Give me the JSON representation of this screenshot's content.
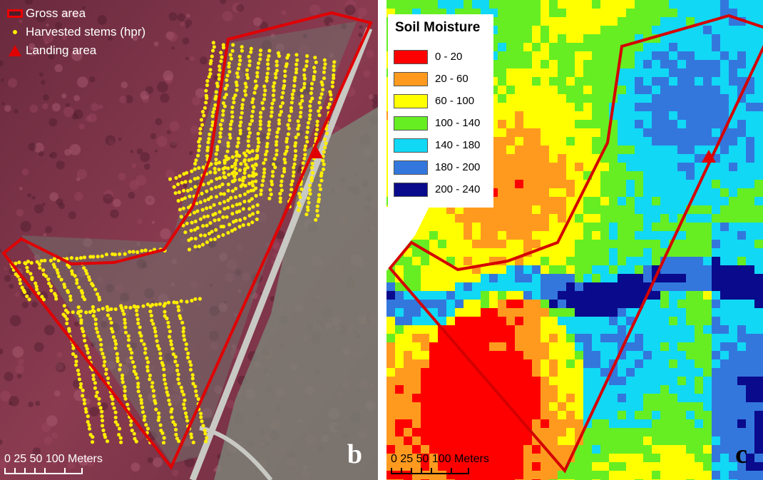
{
  "panel_b": {
    "legend": {
      "gross_area": "Gross area",
      "harvested_stems": "Harvested stems (hpr)",
      "landing_area": "Landing area"
    },
    "scale_text": "0  25 50     100 Meters",
    "panel_letter": "b",
    "colors": {
      "boundary": "#e00000",
      "stems": "#ffee00",
      "landing": "#e00000"
    }
  },
  "panel_c": {
    "legend": {
      "title": "Soil Moisture",
      "classes": [
        {
          "label": "0 - 20",
          "color": "#ff0000"
        },
        {
          "label": "20 - 60",
          "color": "#ff9a1f"
        },
        {
          "label": "60 - 100",
          "color": "#ffff00"
        },
        {
          "label": "100 - 140",
          "color": "#66ee22"
        },
        {
          "label": "140 - 180",
          "color": "#11d8f5"
        },
        {
          "label": "180 - 200",
          "color": "#3377dd"
        },
        {
          "label": "200 - 240",
          "color": "#0a0a8c"
        }
      ]
    },
    "scale_text": "0  25 50     100 Meters",
    "panel_letter": "c"
  }
}
